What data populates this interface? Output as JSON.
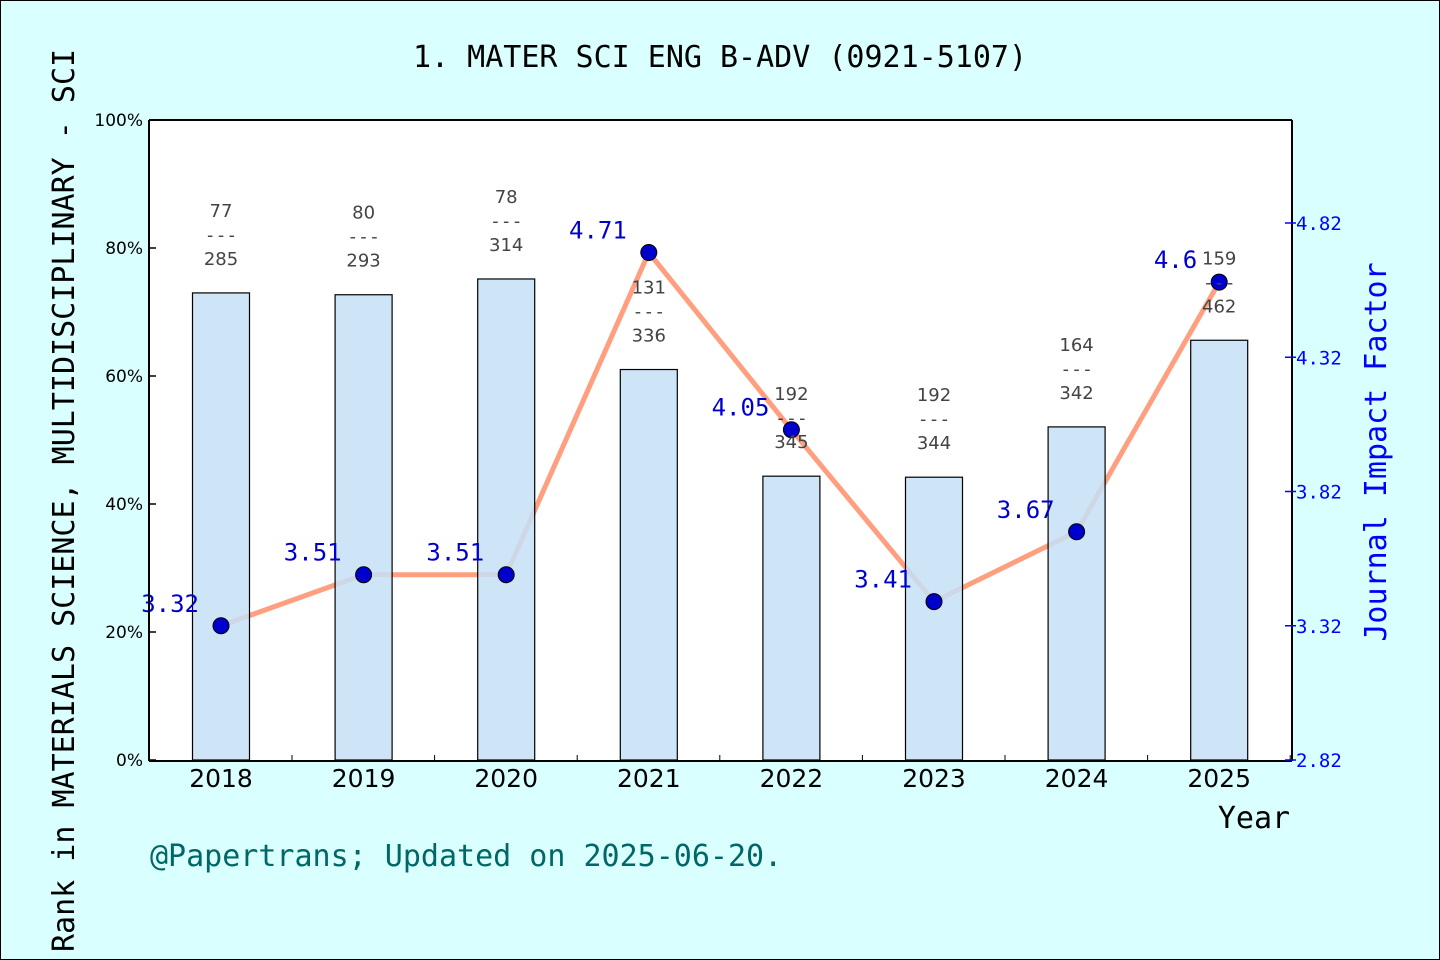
{
  "chart_data": {
    "type": "bar+line",
    "title": "1. MATER SCI ENG B-ADV (0921-5107)",
    "xlabel": "Year",
    "ylabel_left": "Rank in MATERIALS SCIENCE, MULTIDISCIPLINARY - SCI",
    "ylabel_right": "Journal Impact Factor",
    "categories": [
      "2018",
      "2019",
      "2020",
      "2021",
      "2022",
      "2023",
      "2024",
      "2025"
    ],
    "left_axis": {
      "ylim": [
        0,
        100
      ],
      "ticks": [
        "0%",
        "20%",
        "40%",
        "60%",
        "80%",
        "100%"
      ]
    },
    "right_axis": {
      "ylim": [
        2.82,
        5.2
      ],
      "ticks": [
        "2.82",
        "3.32",
        "3.82",
        "4.32",
        "4.82"
      ]
    },
    "bars": {
      "rank": [
        77,
        80,
        78,
        131,
        192,
        192,
        164,
        159
      ],
      "total": [
        285,
        293,
        314,
        336,
        345,
        344,
        342,
        462
      ],
      "color": "#c5e0f7"
    },
    "line": {
      "values": [
        3.32,
        3.51,
        3.51,
        4.71,
        4.05,
        3.41,
        3.67,
        4.6
      ],
      "labels": [
        "3.32",
        "3.51",
        "3.51",
        "4.71",
        "4.05",
        "3.41",
        "3.67",
        "4.6"
      ],
      "color": "#ff9f7f",
      "marker_color": "#0000cc"
    },
    "grid": false,
    "footer": "@Papertrans; Updated on 2025-06-20."
  }
}
